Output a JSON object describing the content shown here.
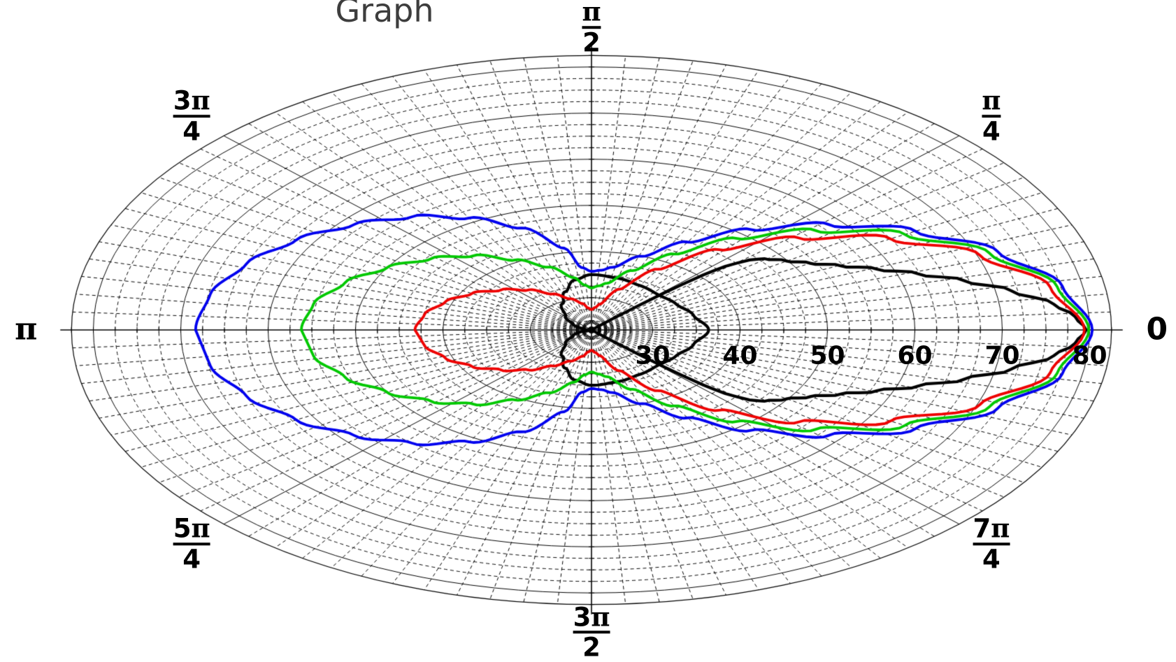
{
  "title": "Graph",
  "colors": {
    "blue": "#0000ee",
    "green": "#00c800",
    "red": "#ee0000",
    "black": "#000000",
    "grid": "#000000",
    "title_color": "#3d3d3d"
  },
  "chart_data": {
    "type": "line",
    "subtype": "polar",
    "title": "Graph",
    "grid": "on",
    "r_axis": {
      "center_value": 23,
      "max_value": 82.5,
      "solid_rings": [
        30,
        40,
        50,
        60,
        70,
        80
      ],
      "dashed_ring_step": 2.5,
      "dashed_ring_min": 25,
      "dashed_ring_max": 80,
      "tick_labels": [
        "30",
        "40",
        "50",
        "60",
        "70",
        "80"
      ],
      "tick_label_values": [
        30,
        40,
        50,
        60,
        70,
        80
      ]
    },
    "theta_axis": {
      "solid_spokes_deg": [
        0,
        45,
        90,
        135,
        180,
        225,
        270,
        315
      ],
      "dashed_spoke_step_deg": 3.75,
      "labels": [
        {
          "deg": 0,
          "text": "0"
        },
        {
          "deg": 45,
          "num": "π",
          "den": "4"
        },
        {
          "deg": 90,
          "num": "π",
          "den": "2"
        },
        {
          "deg": 135,
          "num": "3π",
          "den": "4"
        },
        {
          "deg": 180,
          "text": "π"
        },
        {
          "deg": 225,
          "num": "5π",
          "den": "4"
        },
        {
          "deg": 270,
          "num": "3π",
          "den": "2"
        },
        {
          "deg": 315,
          "num": "7π",
          "den": "4"
        }
      ]
    },
    "series": [
      {
        "name": "black-main-lobe",
        "color": "#000000",
        "width": 4.2,
        "symmetric": true,
        "points": [
          [
            0,
            79.6
          ],
          [
            3,
            78.4
          ],
          [
            6,
            76.2
          ],
          [
            10,
            71.8
          ],
          [
            14,
            67.0
          ],
          [
            18,
            62.3
          ],
          [
            22,
            58.2
          ],
          [
            26,
            54.7
          ],
          [
            30,
            51.9
          ],
          [
            34,
            49.8
          ],
          [
            38,
            48.1
          ],
          [
            40,
            46.6
          ],
          [
            42,
            43.6
          ],
          [
            43,
            40.5
          ],
          [
            44,
            34.5
          ],
          [
            45,
            26.5
          ],
          [
            45.6,
            23.0
          ]
        ]
      },
      {
        "name": "black-inner-lobe",
        "color": "#000000",
        "width": 4.2,
        "symmetric": true,
        "points": [
          [
            0,
            36.4
          ],
          [
            15,
            35.1
          ],
          [
            30,
            34.2
          ],
          [
            45,
            33.8
          ],
          [
            60,
            34.1
          ],
          [
            75,
            34.6
          ],
          [
            90,
            35.0
          ],
          [
            100,
            34.0
          ],
          [
            110,
            31.8
          ],
          [
            120,
            29.6
          ],
          [
            135,
            27.2
          ],
          [
            150,
            25.4
          ],
          [
            165,
            24.1
          ],
          [
            180,
            23.1
          ]
        ]
      },
      {
        "name": "red",
        "color": "#ee0000",
        "width": 3.8,
        "symmetric": true,
        "points": [
          [
            0,
            79.4
          ],
          [
            10,
            76.3
          ],
          [
            20,
            70.3
          ],
          [
            30,
            62.5
          ],
          [
            40,
            54.0
          ],
          [
            50,
            45.7
          ],
          [
            60,
            38.2
          ],
          [
            70,
            32.4
          ],
          [
            80,
            28.7
          ],
          [
            85,
            27.9
          ],
          [
            90,
            27.4
          ],
          [
            95,
            27.8
          ],
          [
            100,
            28.8
          ],
          [
            110,
            30.2
          ],
          [
            120,
            32.0
          ],
          [
            130,
            34.3
          ],
          [
            140,
            36.5
          ],
          [
            150,
            38.8
          ],
          [
            160,
            40.8
          ],
          [
            170,
            42.4
          ],
          [
            180,
            43.2
          ]
        ]
      },
      {
        "name": "green",
        "color": "#00c800",
        "width": 3.8,
        "symmetric": true,
        "points": [
          [
            0,
            79.9
          ],
          [
            10,
            77.1
          ],
          [
            20,
            71.5
          ],
          [
            30,
            64.4
          ],
          [
            40,
            56.5
          ],
          [
            50,
            48.9
          ],
          [
            60,
            42.0
          ],
          [
            70,
            36.7
          ],
          [
            80,
            33.3
          ],
          [
            85,
            32.6
          ],
          [
            90,
            32.1
          ],
          [
            95,
            32.8
          ],
          [
            100,
            34.5
          ],
          [
            110,
            37.5
          ],
          [
            120,
            40.5
          ],
          [
            130,
            44.0
          ],
          [
            140,
            47.0
          ],
          [
            150,
            50.0
          ],
          [
            160,
            53.0
          ],
          [
            170,
            55.3
          ],
          [
            180,
            56.2
          ]
        ]
      },
      {
        "name": "blue",
        "color": "#0000ee",
        "width": 3.8,
        "symmetric": true,
        "points": [
          [
            0,
            80.3
          ],
          [
            10,
            77.7
          ],
          [
            20,
            72.5
          ],
          [
            30,
            65.8
          ],
          [
            40,
            58.5
          ],
          [
            50,
            51.4
          ],
          [
            60,
            45.0
          ],
          [
            70,
            40.0
          ],
          [
            80,
            36.8
          ],
          [
            85,
            36.0
          ],
          [
            90,
            35.7
          ],
          [
            95,
            36.6
          ],
          [
            100,
            41.0
          ],
          [
            110,
            46.5
          ],
          [
            120,
            51.0
          ],
          [
            130,
            55.0
          ],
          [
            140,
            58.5
          ],
          [
            150,
            62.0
          ],
          [
            160,
            65.0
          ],
          [
            170,
            67.3
          ],
          [
            180,
            68.3
          ]
        ]
      }
    ]
  }
}
